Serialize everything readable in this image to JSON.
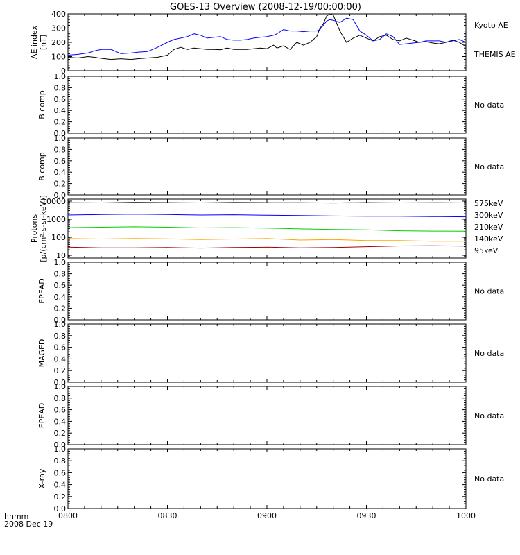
{
  "title": "GOES-13 Overview (2008-12-19/00:00:00)",
  "footer": {
    "line1": "hhmm",
    "line2": "2008 Dec 19"
  },
  "colors": {
    "axis": "#000000",
    "kyoto": "#000000",
    "themis": "#0000ff",
    "p575": "#a00000",
    "p300": "#ffa500",
    "p210": "#00d000",
    "p140": "#0000ff",
    "p95": "#000000"
  },
  "chart_data": [
    {
      "id": "ae",
      "type": "line",
      "ylabel": [
        "AE index",
        "[nT]"
      ],
      "ylim": [
        0,
        400
      ],
      "yticks": [
        0,
        100,
        200,
        300,
        400
      ],
      "xlim": [
        0,
        120
      ],
      "xticks": [
        0,
        30,
        60,
        90,
        120
      ],
      "xticklabels": [
        "0800",
        "0830",
        "0900",
        "0930",
        "1000"
      ],
      "x": [
        0,
        3,
        6,
        8,
        10,
        13,
        16,
        19,
        21,
        24,
        27,
        30,
        32,
        34,
        36,
        38,
        40,
        42,
        44,
        46,
        48,
        50,
        52,
        54,
        56,
        58,
        60,
        62,
        63,
        65,
        67,
        69,
        71,
        73,
        75,
        76,
        77,
        78,
        79,
        80,
        82,
        84,
        86,
        88,
        90,
        92,
        94,
        96,
        98,
        100,
        102,
        104,
        106,
        108,
        110,
        112,
        114,
        116,
        118,
        120
      ],
      "series": [
        {
          "name": "Kyoto AE",
          "values": [
            95,
            90,
            100,
            95,
            88,
            80,
            85,
            80,
            85,
            90,
            95,
            110,
            150,
            165,
            150,
            160,
            155,
            150,
            150,
            148,
            160,
            150,
            150,
            150,
            155,
            160,
            155,
            180,
            160,
            175,
            150,
            200,
            180,
            200,
            240,
            300,
            330,
            385,
            400,
            390,
            280,
            200,
            230,
            250,
            230,
            210,
            240,
            250,
            220,
            210,
            230,
            215,
            200,
            205,
            195,
            190,
            200,
            215,
            200,
            170
          ]
        },
        {
          "name": "THEMIS AE",
          "values": [
            110,
            115,
            125,
            140,
            150,
            150,
            120,
            125,
            130,
            135,
            165,
            200,
            220,
            230,
            240,
            260,
            250,
            230,
            235,
            240,
            220,
            215,
            215,
            220,
            230,
            235,
            240,
            250,
            260,
            290,
            280,
            280,
            275,
            280,
            280,
            290,
            320,
            350,
            360,
            355,
            340,
            370,
            360,
            280,
            250,
            210,
            220,
            260,
            240,
            185,
            190,
            195,
            200,
            210,
            210,
            210,
            200,
            210,
            220,
            200
          ]
        }
      ]
    },
    {
      "id": "bcomp1",
      "type": "line",
      "ylabel": [
        "B comp"
      ],
      "ylim": [
        0,
        1
      ],
      "yticks": [
        0,
        0.2,
        0.4,
        0.6,
        0.8,
        1
      ],
      "yticklabels": [
        "0.0",
        "0.2",
        "0.4",
        "0.6",
        "0.8",
        "1.0"
      ],
      "xlim": [
        0,
        120
      ],
      "nodata": "No data"
    },
    {
      "id": "bcomp2",
      "type": "line",
      "ylabel": [
        "B comp"
      ],
      "ylim": [
        0,
        1
      ],
      "yticks": [
        0,
        0.2,
        0.4,
        0.6,
        0.8,
        1
      ],
      "yticklabels": [
        "0.0",
        "0.2",
        "0.4",
        "0.6",
        "0.8",
        "1.0"
      ],
      "xlim": [
        0,
        120
      ],
      "nodata": "No data"
    },
    {
      "id": "protons",
      "type": "line",
      "scale": "log",
      "ylabel": [
        "Protons",
        "[p/(cm²-s-sr-keV)]"
      ],
      "ylim": [
        7,
        13000
      ],
      "yticks": [
        10,
        100,
        1000,
        10000
      ],
      "yticklabels": [
        "10",
        "100",
        "1000",
        "10000"
      ],
      "xlim": [
        0,
        120
      ],
      "x": [
        0,
        10,
        20,
        30,
        40,
        50,
        60,
        70,
        80,
        90,
        100,
        110,
        120
      ],
      "series": [
        {
          "name": "575keV",
          "values": [
            28,
            26,
            26,
            27,
            25,
            27,
            28,
            26,
            27,
            30,
            33,
            34,
            32
          ]
        },
        {
          "name": "300keV",
          "values": [
            85,
            80,
            85,
            82,
            75,
            80,
            85,
            70,
            75,
            65,
            65,
            60,
            60
          ]
        },
        {
          "name": "210keV",
          "values": [
            340,
            360,
            380,
            360,
            330,
            340,
            320,
            290,
            270,
            260,
            230,
            220,
            215
          ]
        },
        {
          "name": "140keV",
          "values": [
            1700,
            1800,
            1900,
            1800,
            1700,
            1750,
            1650,
            1600,
            1500,
            1450,
            1450,
            1400,
            1350
          ]
        },
        {
          "name": "95keV",
          "values": [
            8200,
            8000,
            8600,
            8300,
            8000,
            8400,
            8200,
            8100,
            7900,
            8300,
            8000,
            8200,
            8000
          ]
        }
      ]
    },
    {
      "id": "epead1",
      "type": "line",
      "ylabel": [
        "EPEAD"
      ],
      "ylim": [
        0,
        1
      ],
      "yticks": [
        0,
        0.2,
        0.4,
        0.6,
        0.8,
        1
      ],
      "yticklabels": [
        "0.0",
        "0.2",
        "0.4",
        "0.6",
        "0.8",
        "1.0"
      ],
      "xlim": [
        0,
        120
      ],
      "nodata": "No data"
    },
    {
      "id": "maged",
      "type": "line",
      "ylabel": [
        "MAGED"
      ],
      "ylim": [
        0,
        1
      ],
      "yticks": [
        0,
        0.2,
        0.4,
        0.6,
        0.8,
        1
      ],
      "yticklabels": [
        "0.0",
        "0.2",
        "0.4",
        "0.6",
        "0.8",
        "1.0"
      ],
      "xlim": [
        0,
        120
      ],
      "nodata": "No data"
    },
    {
      "id": "epead2",
      "type": "line",
      "ylabel": [
        "EPEAD"
      ],
      "ylim": [
        0,
        1
      ],
      "yticks": [
        0,
        0.2,
        0.4,
        0.6,
        0.8,
        1
      ],
      "yticklabels": [
        "0.0",
        "0.2",
        "0.4",
        "0.6",
        "0.8",
        "1.0"
      ],
      "xlim": [
        0,
        120
      ],
      "nodata": "No data"
    },
    {
      "id": "xray",
      "type": "line",
      "ylabel": [
        "X-ray"
      ],
      "ylim": [
        0,
        1
      ],
      "yticks": [
        0,
        0.2,
        0.4,
        0.6,
        0.8,
        1
      ],
      "yticklabels": [
        "0.0",
        "0.2",
        "0.4",
        "0.6",
        "0.8",
        "1.0"
      ],
      "xlim": [
        0,
        120
      ],
      "xticks": [
        0,
        30,
        60,
        90,
        120
      ],
      "xticklabels": [
        "0800",
        "0830",
        "0900",
        "0930",
        "1000"
      ],
      "nodata": "No data"
    }
  ]
}
